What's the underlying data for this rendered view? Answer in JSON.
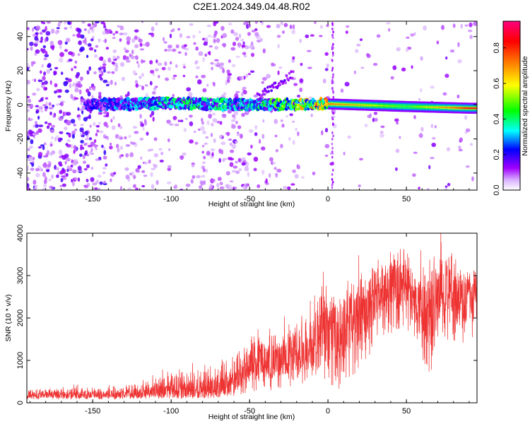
{
  "title": "C2E1.2024.349.04.48.R02",
  "chart_data": [
    {
      "type": "heatmap",
      "title": "C2E1.2024.349.04.48.R02",
      "xlabel": "Height of straight line (km)",
      "ylabel": "Frequency (Hz)",
      "xlim": [
        -192,
        95
      ],
      "ylim": [
        -50,
        49
      ],
      "x_ticks": [
        -150,
        -100,
        -50,
        0,
        50
      ],
      "y_ticks": [
        -40,
        -20,
        0,
        20,
        40
      ],
      "colorbar": {
        "label": "Normalized spectral amplitude",
        "range": [
          0,
          0.95
        ],
        "ticks": [
          0.0,
          0.2,
          0.4,
          0.6,
          0.8
        ],
        "colormap": [
          "#ffffff",
          "#a000ff",
          "#0000ff",
          "#00ffff",
          "#00ff00",
          "#ffff00",
          "#ff8000",
          "#ff0000",
          "#ff0080"
        ]
      },
      "ridge": {
        "description_points": [
          {
            "x": -150,
            "f": 0,
            "amp": 0.25
          },
          {
            "x": -100,
            "f": 1,
            "amp": 0.45
          },
          {
            "x": -50,
            "f": 0,
            "amp": 0.4
          },
          {
            "x": 0,
            "f": 0.5,
            "amp": 0.8
          },
          {
            "x": 50,
            "f": -1,
            "amp": 0.5
          },
          {
            "x": 90,
            "f": -2,
            "amp": 0.9
          }
        ]
      }
    },
    {
      "type": "line",
      "xlabel": "Height of straight line (km)",
      "ylabel": "SNR (10 * v/v)",
      "xlim": [
        -192,
        95
      ],
      "ylim": [
        0,
        4000
      ],
      "x_ticks": [
        -150,
        -100,
        -50,
        0,
        50
      ],
      "y_ticks": [
        0,
        1000,
        2000,
        3000,
        4000
      ],
      "color": "#ee3333",
      "envelope": [
        {
          "x": -192,
          "lo": 80,
          "mid": 180,
          "hi": 330
        },
        {
          "x": -150,
          "lo": 80,
          "mid": 190,
          "hi": 360
        },
        {
          "x": -120,
          "lo": 90,
          "mid": 220,
          "hi": 450
        },
        {
          "x": -100,
          "lo": 100,
          "mid": 280,
          "hi": 700
        },
        {
          "x": -80,
          "lo": 100,
          "mid": 300,
          "hi": 800
        },
        {
          "x": -60,
          "lo": 150,
          "mid": 450,
          "hi": 1100
        },
        {
          "x": -50,
          "lo": 250,
          "mid": 900,
          "hi": 1500
        },
        {
          "x": -30,
          "lo": 300,
          "mid": 1000,
          "hi": 1700
        },
        {
          "x": -10,
          "lo": 500,
          "mid": 1350,
          "hi": 2500
        },
        {
          "x": 0,
          "lo": 400,
          "mid": 1600,
          "hi": 2600
        },
        {
          "x": 10,
          "lo": 200,
          "mid": 1700,
          "hi": 2600
        },
        {
          "x": 20,
          "lo": 800,
          "mid": 2100,
          "hi": 3100
        },
        {
          "x": 35,
          "lo": 1500,
          "mid": 2600,
          "hi": 3300
        },
        {
          "x": 45,
          "lo": 1700,
          "mid": 2900,
          "hi": 3700
        },
        {
          "x": 55,
          "lo": 1500,
          "mid": 2500,
          "hi": 3500
        },
        {
          "x": 65,
          "lo": 600,
          "mid": 2000,
          "hi": 3000
        },
        {
          "x": 72,
          "lo": 1500,
          "mid": 2700,
          "hi": 3800
        },
        {
          "x": 85,
          "lo": 1400,
          "mid": 2400,
          "hi": 3300
        },
        {
          "x": 95,
          "lo": 1500,
          "mid": 2500,
          "hi": 3200
        }
      ]
    }
  ]
}
